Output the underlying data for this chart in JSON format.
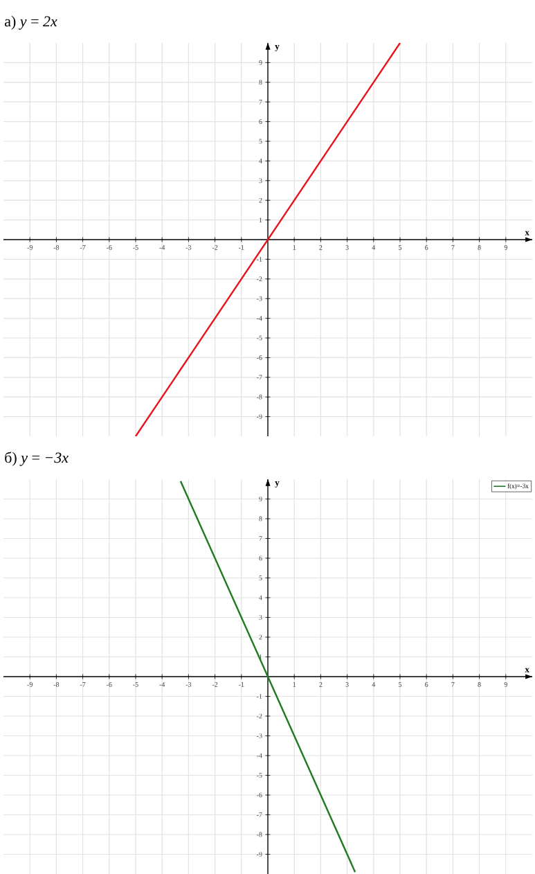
{
  "chart_data": [
    {
      "type": "line",
      "title": "а) *y* = *2x*",
      "xlabel": "x",
      "ylabel": "y",
      "x": [
        -5,
        5
      ],
      "series": [
        {
          "color": "#e8141b",
          "values": [
            -10,
            10
          ]
        }
      ],
      "xlim": [
        -10,
        10
      ],
      "ylim": [
        -10,
        10
      ],
      "xticks": [
        -9,
        -8,
        -7,
        -6,
        -5,
        -4,
        -3,
        -2,
        -1,
        1,
        2,
        3,
        4,
        5,
        6,
        7,
        8,
        9
      ],
      "yticks": [
        -9,
        -8,
        -7,
        -6,
        -5,
        -4,
        -3,
        -2,
        -1,
        1,
        2,
        3,
        4,
        5,
        6,
        7,
        8,
        9
      ],
      "grid": true
    },
    {
      "type": "line",
      "title": "б) *y* = *−3x*",
      "xlabel": "x",
      "ylabel": "y",
      "x": [
        -3.3,
        3.3
      ],
      "series": [
        {
          "name": "f(x)=-3x",
          "color": "#1f7a1f",
          "values": [
            9.9,
            -9.9
          ]
        }
      ],
      "xlim": [
        -10,
        10
      ],
      "ylim": [
        -10,
        10
      ],
      "xticks": [
        -9,
        -8,
        -7,
        -6,
        -5,
        -4,
        -3,
        -2,
        -1,
        1,
        2,
        3,
        4,
        5,
        6,
        7,
        8,
        9
      ],
      "yticks": [
        -9,
        -8,
        -7,
        -6,
        -5,
        -4,
        -3,
        -2,
        -1,
        1,
        2,
        3,
        4,
        5,
        6,
        7,
        8,
        9
      ],
      "grid": true,
      "legend": "top right"
    }
  ]
}
